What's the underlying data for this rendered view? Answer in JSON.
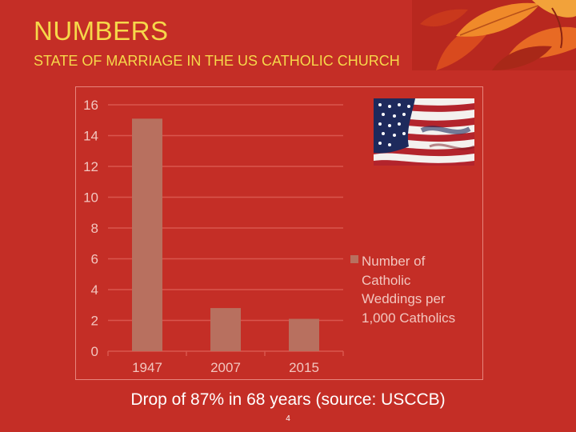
{
  "slide": {
    "title": "NUMBERS",
    "subtitle": "STATE OF MARRIAGE IN THE US CATHOLIC CHURCH",
    "caption": "Drop of 87% in 68 years (source: USCCB)",
    "page_number": "4"
  },
  "colors": {
    "background": "#c42e26",
    "title": "#f6d84a",
    "bar": "#b8705f",
    "axis_text": "#f2c6bf",
    "gridline": "#d9564d"
  },
  "images": {
    "corner_art": "autumn-leaves-decoration",
    "flag": "american-flag-photo"
  },
  "chart_data": {
    "type": "bar",
    "categories": [
      "1947",
      "2007",
      "2015"
    ],
    "series": [
      {
        "name": "Number of Catholic Weddings per 1,000 Catholics",
        "values": [
          15.1,
          2.8,
          2.1
        ]
      }
    ],
    "ylim": [
      0,
      16
    ],
    "yticks": [
      0,
      2,
      4,
      6,
      8,
      10,
      12,
      14,
      16
    ],
    "grid": true,
    "legend_position": "right",
    "legend_lines": [
      "Number of",
      "Catholic",
      "Weddings per",
      "1,000 Catholics"
    ]
  }
}
